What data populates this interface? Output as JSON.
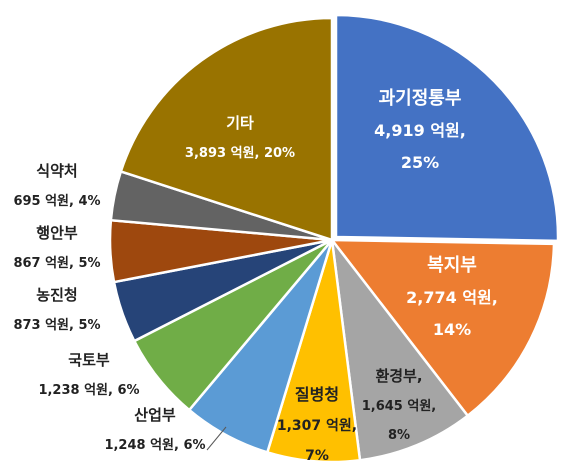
{
  "chart_data": {
    "type": "pie",
    "title": "",
    "unit": "억원",
    "slices": [
      {
        "name": "과기정통부",
        "value": 4919,
        "value_label": "4,919 억원,",
        "percent_label": "25%",
        "color": "#4472C4"
      },
      {
        "name": "복지부",
        "value": 2774,
        "value_label": "2,774 억원,",
        "percent_label": "14%",
        "color": "#ED7D31"
      },
      {
        "name": "환경부,",
        "value": 1645,
        "value_label": "1,645 억원,",
        "percent_label": "8%",
        "color": "#A5A5A5"
      },
      {
        "name": "질병청",
        "value": 1307,
        "value_label": "1,307 억원,",
        "percent_label": "7%",
        "color": "#FFC000"
      },
      {
        "name": "산업부",
        "value": 1248,
        "value_label": "1,248 억원, 6%",
        "percent_label": "",
        "color": "#5B9BD5"
      },
      {
        "name": "국토부",
        "value": 1238,
        "value_label": "1,238 억원, 6%",
        "percent_label": "",
        "color": "#70AD47"
      },
      {
        "name": "농진청",
        "value": 873,
        "value_label": "873 억원, 5%",
        "percent_label": "",
        "color": "#264478"
      },
      {
        "name": "행안부",
        "value": 867,
        "value_label": "867 억원, 5%",
        "percent_label": "",
        "color": "#9E480E"
      },
      {
        "name": "식약처",
        "value": 695,
        "value_label": "695 억원, 4%",
        "percent_label": "",
        "color": "#636363"
      },
      {
        "name": "기타",
        "value": 3893,
        "value_label": "3,893 억원, 20%",
        "percent_label": "",
        "color": "#997300"
      }
    ]
  }
}
